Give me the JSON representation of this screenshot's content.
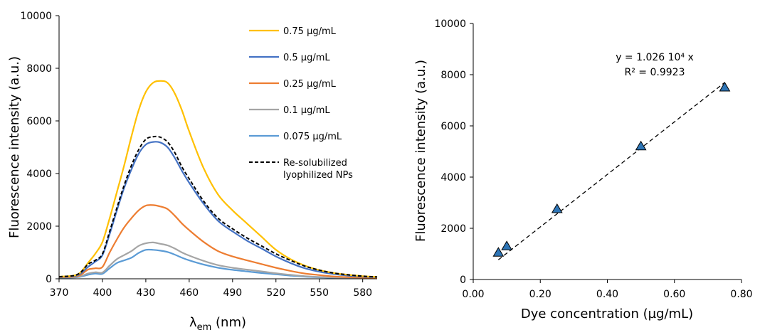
{
  "chart_data": [
    {
      "type": "line",
      "title": "",
      "xlabel": "λem (nm)",
      "xlabel_main": "λ",
      "xlabel_sub": "em",
      "xlabel_rest": " (nm)",
      "ylabel": "Fluorescence intensity (a.u.)",
      "xlim": [
        370,
        590
      ],
      "ylim": [
        0,
        10000
      ],
      "xticks": [
        "370",
        "400",
        "430",
        "460",
        "490",
        "520",
        "550",
        "580"
      ],
      "yticks": [
        "0",
        "2000",
        "4000",
        "6000",
        "8000",
        "10000"
      ],
      "legend_position": "top-right",
      "grid": false,
      "x": [
        370,
        380,
        385,
        390,
        395,
        400,
        405,
        410,
        415,
        420,
        425,
        430,
        435,
        440,
        445,
        450,
        455,
        460,
        470,
        480,
        490,
        500,
        510,
        520,
        530,
        540,
        550,
        560,
        570,
        580,
        590
      ],
      "series": [
        {
          "name": "0.75 µg/mL",
          "color": "#FFC000",
          "dash": "solid",
          "values": [
            80,
            120,
            250,
            600,
            950,
            1400,
            2300,
            3300,
            4300,
            5400,
            6400,
            7100,
            7450,
            7520,
            7450,
            7050,
            6400,
            5600,
            4200,
            3200,
            2600,
            2100,
            1600,
            1100,
            750,
            500,
            330,
            220,
            150,
            100,
            70
          ]
        },
        {
          "name": "0.5 µg/mL",
          "color": "#4472C4",
          "dash": "solid",
          "values": [
            70,
            100,
            200,
            450,
            650,
            900,
            1700,
            2600,
            3450,
            4150,
            4750,
            5100,
            5200,
            5180,
            5000,
            4600,
            4100,
            3650,
            2850,
            2200,
            1800,
            1450,
            1150,
            850,
            600,
            400,
            270,
            180,
            120,
            80,
            60
          ]
        },
        {
          "name": "0.25 µg/mL",
          "color": "#ED7D31",
          "dash": "solid",
          "values": [
            60,
            80,
            150,
            350,
            400,
            450,
            1000,
            1500,
            1950,
            2300,
            2600,
            2780,
            2800,
            2750,
            2650,
            2400,
            2100,
            1850,
            1400,
            1050,
            850,
            700,
            560,
            420,
            300,
            200,
            140,
            90,
            60,
            45,
            35
          ]
        },
        {
          "name": "0.1 µg/mL",
          "color": "#A5A5A5",
          "dash": "solid",
          "values": [
            50,
            60,
            100,
            200,
            250,
            240,
            500,
            750,
            900,
            1050,
            1250,
            1350,
            1380,
            1330,
            1270,
            1150,
            1000,
            880,
            680,
            520,
            420,
            350,
            280,
            210,
            150,
            100,
            70,
            50,
            35,
            25,
            20
          ]
        },
        {
          "name": "0.075 µg/mL",
          "color": "#5B9BD5",
          "dash": "solid",
          "values": [
            40,
            50,
            80,
            150,
            200,
            190,
            400,
            600,
            700,
            800,
            980,
            1100,
            1100,
            1070,
            1020,
            920,
            800,
            700,
            540,
            420,
            340,
            280,
            220,
            170,
            120,
            80,
            55,
            40,
            28,
            20,
            15
          ]
        },
        {
          "name": "Re-solubilized lyophilized NPs",
          "legend_lines": [
            "Re-solubilized",
            "lyophilized NPs"
          ],
          "color": "#000000",
          "dash": "dashed",
          "values": [
            80,
            120,
            250,
            550,
            700,
            950,
            1800,
            2700,
            3550,
            4300,
            4900,
            5300,
            5400,
            5380,
            5200,
            4800,
            4250,
            3800,
            2950,
            2300,
            1900,
            1550,
            1250,
            950,
            700,
            480,
            330,
            220,
            150,
            100,
            70
          ]
        }
      ]
    },
    {
      "type": "scatter",
      "title": "",
      "xlabel": "Dye concentration (µg/mL)",
      "ylabel": "Fluorescence intensity (a.u.)",
      "xlim": [
        0,
        0.8
      ],
      "ylim": [
        0,
        10000
      ],
      "xticks": [
        "0.00",
        "0.20",
        "0.40",
        "0.60",
        "0.80"
      ],
      "yticks": [
        "0",
        "2000",
        "4000",
        "6000",
        "8000",
        "10000"
      ],
      "grid": false,
      "marker": "triangle",
      "marker_color": "#2E75B6",
      "points": [
        {
          "x": 0.075,
          "y": 1050
        },
        {
          "x": 0.1,
          "y": 1300
        },
        {
          "x": 0.25,
          "y": 2750
        },
        {
          "x": 0.5,
          "y": 5200
        },
        {
          "x": 0.75,
          "y": 7500
        }
      ],
      "fit": {
        "slope": 10260,
        "x_range": [
          0.075,
          0.75
        ],
        "style": "dashed",
        "color": "#000000"
      },
      "equation_lines": [
        "y = 1.026 10⁴ x",
        "R² = 0.9923"
      ]
    }
  ]
}
